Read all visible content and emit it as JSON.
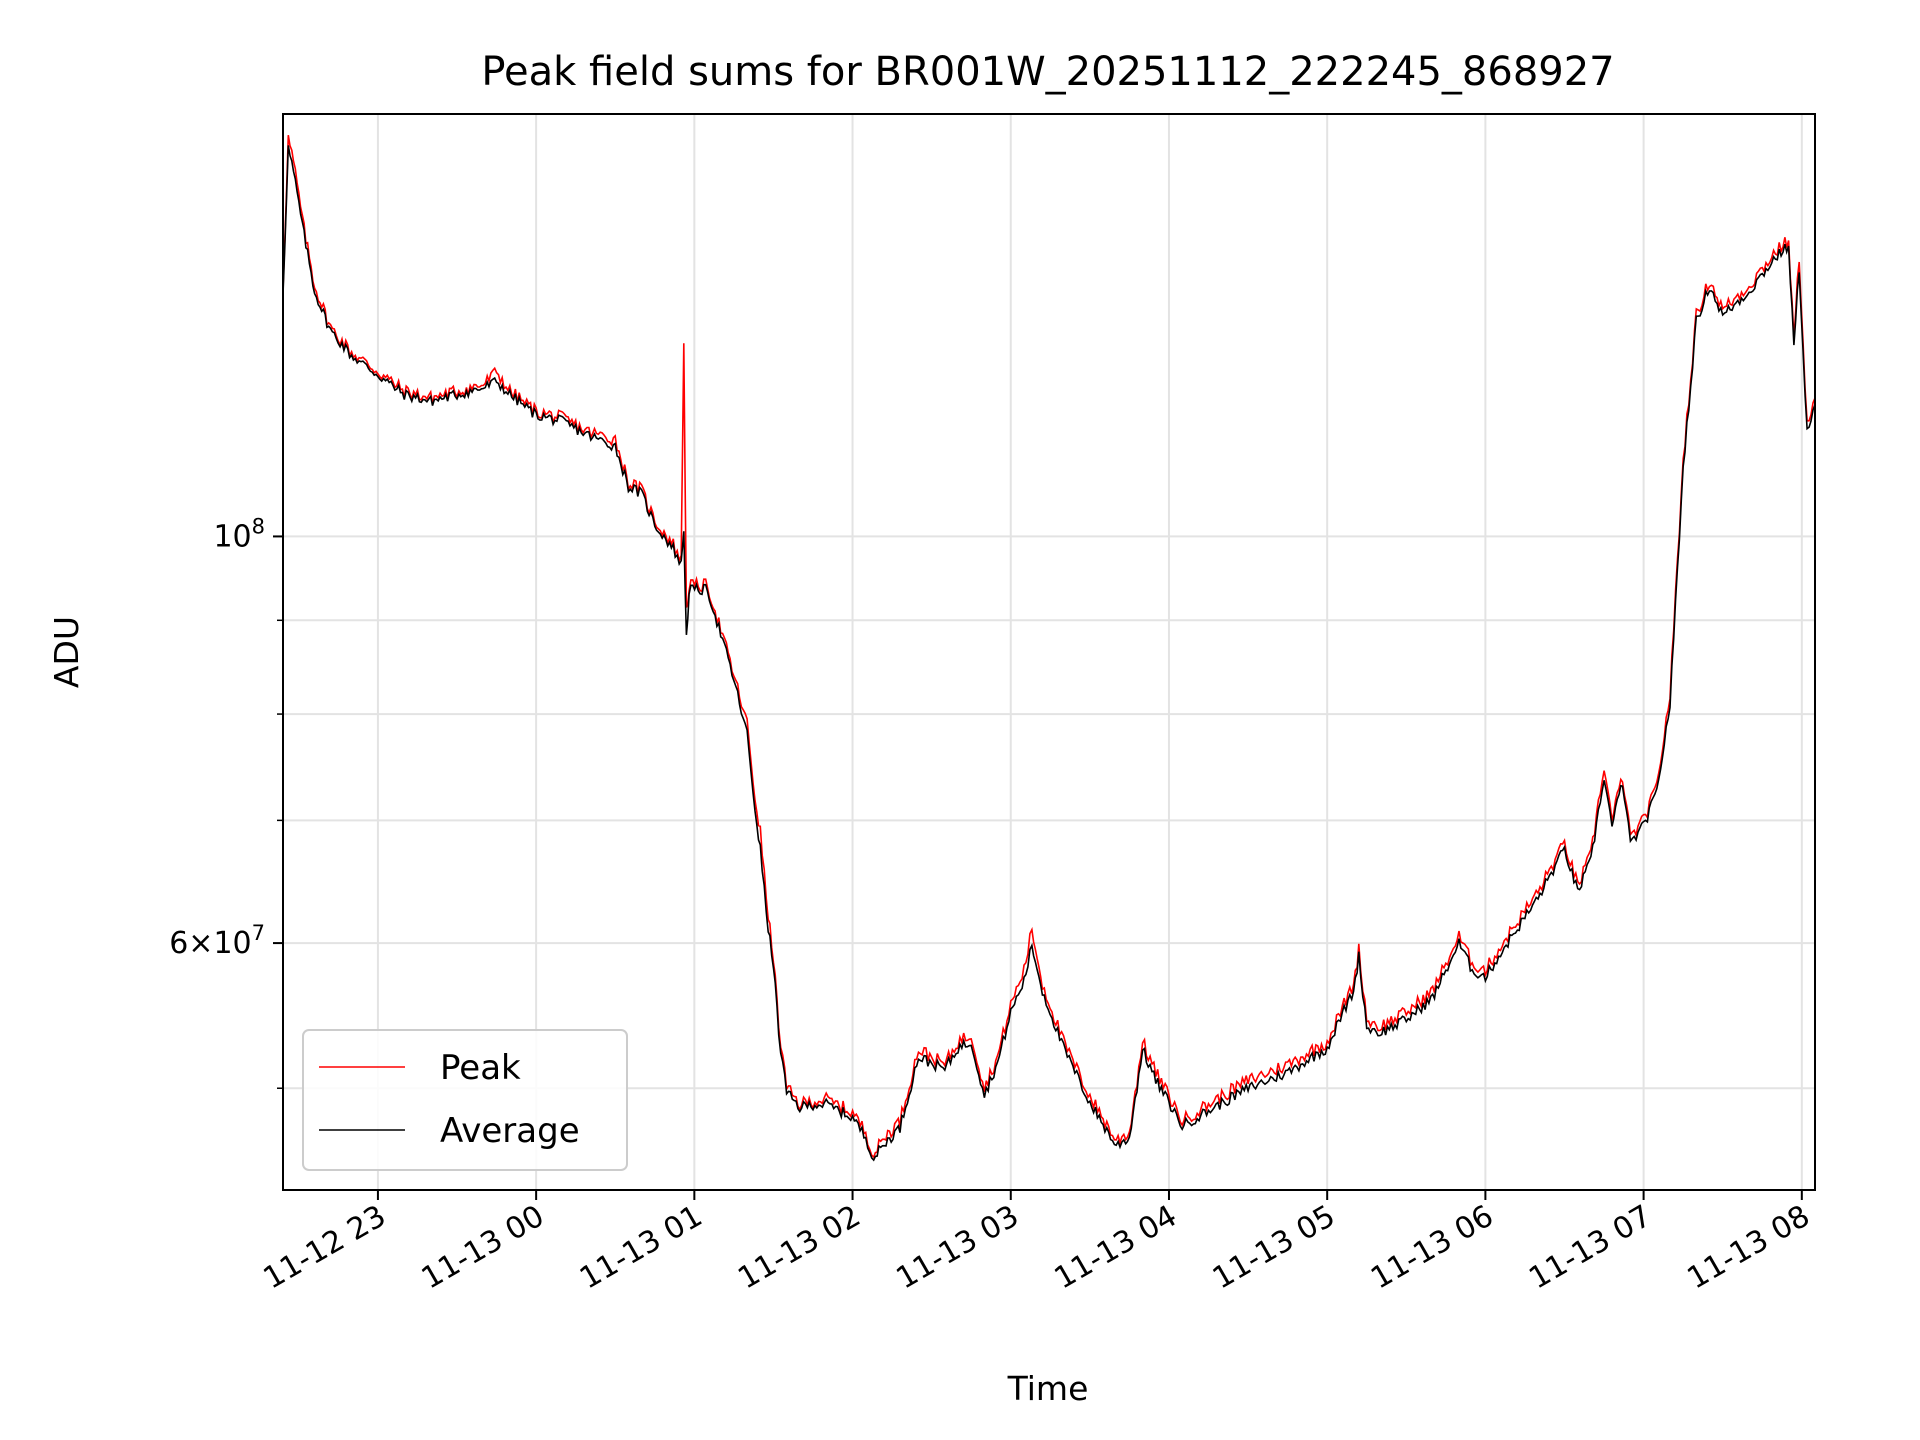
{
  "chart_data": {
    "type": "line",
    "title": "Peak field sums for BR001W_20251112_222245_868927",
    "xlabel": "Time",
    "ylabel": "ADU",
    "yscale": "log",
    "grid": true,
    "legend_position": "lower-left",
    "xlim": [
      "2025-11-12 22:24",
      "2025-11-13 08:05"
    ],
    "ylim": [
      44000000,
      170000000
    ],
    "x_ticks": [
      "11-12 23",
      "11-13 00",
      "11-13 01",
      "11-13 02",
      "11-13 03",
      "11-13 04",
      "11-13 05",
      "11-13 06",
      "11-13 07",
      "11-13 08"
    ],
    "y_major_tick_labels": [
      {
        "value": 100000000,
        "label": "10^8",
        "base": "10",
        "exponent": "8"
      },
      {
        "value": 60000000,
        "label": "6×10^7",
        "base": "6×10",
        "exponent": "7"
      }
    ],
    "y_minor_ticks": [
      50000000,
      70000000,
      80000000,
      90000000
    ],
    "series": [
      {
        "name": "Peak",
        "color": "#ff0000",
        "points": [
          [
            "2025-11-12 22:24",
            137000000
          ],
          [
            "2025-11-12 22:26",
            165000000
          ],
          [
            "2025-11-12 22:28",
            160000000
          ],
          [
            "2025-11-12 22:32",
            147000000
          ],
          [
            "2025-11-12 22:36",
            137000000
          ],
          [
            "2025-11-12 22:42",
            130000000
          ],
          [
            "2025-11-12 22:50",
            126000000
          ],
          [
            "2025-11-12 23:00",
            123000000
          ],
          [
            "2025-11-12 23:10",
            120000000
          ],
          [
            "2025-11-12 23:20",
            119000000
          ],
          [
            "2025-11-12 23:30",
            120000000
          ],
          [
            "2025-11-12 23:40",
            121000000
          ],
          [
            "2025-11-12 23:45",
            123000000
          ],
          [
            "2025-11-12 23:50",
            120000000
          ],
          [
            "2025-11-13 00:00",
            117000000
          ],
          [
            "2025-11-13 00:10",
            116000000
          ],
          [
            "2025-11-13 00:20",
            114000000
          ],
          [
            "2025-11-13 00:30",
            113000000
          ],
          [
            "2025-11-13 00:35",
            107000000
          ],
          [
            "2025-11-13 00:40",
            106000000
          ],
          [
            "2025-11-13 00:45",
            102000000
          ],
          [
            "2025-11-13 00:52",
            99000000
          ],
          [
            "2025-11-13 00:55",
            97000000
          ],
          [
            "2025-11-13 00:56",
            128000000
          ],
          [
            "2025-11-13 00:57",
            91000000
          ],
          [
            "2025-11-13 00:58",
            94000000
          ],
          [
            "2025-11-13 01:05",
            94000000
          ],
          [
            "2025-11-13 01:10",
            89000000
          ],
          [
            "2025-11-13 01:15",
            84000000
          ],
          [
            "2025-11-13 01:20",
            79000000
          ],
          [
            "2025-11-13 01:23",
            72000000
          ],
          [
            "2025-11-13 01:25",
            69000000
          ],
          [
            "2025-11-13 01:28",
            62000000
          ],
          [
            "2025-11-13 01:30",
            59000000
          ],
          [
            "2025-11-13 01:32",
            54000000
          ],
          [
            "2025-11-13 01:35",
            50000000
          ],
          [
            "2025-11-13 01:40",
            49000000
          ],
          [
            "2025-11-13 01:45",
            49200000
          ],
          [
            "2025-11-13 01:50",
            49300000
          ],
          [
            "2025-11-13 02:00",
            48500000
          ],
          [
            "2025-11-13 02:05",
            47300000
          ],
          [
            "2025-11-13 02:08",
            46000000
          ],
          [
            "2025-11-13 02:12",
            47000000
          ],
          [
            "2025-11-13 02:18",
            48000000
          ],
          [
            "2025-11-13 02:25",
            52500000
          ],
          [
            "2025-11-13 02:30",
            52000000
          ],
          [
            "2025-11-13 02:35",
            51500000
          ],
          [
            "2025-11-13 02:40",
            53000000
          ],
          [
            "2025-11-13 02:45",
            53500000
          ],
          [
            "2025-11-13 02:50",
            50000000
          ],
          [
            "2025-11-13 02:55",
            52000000
          ],
          [
            "2025-11-13 03:00",
            55500000
          ],
          [
            "2025-11-13 03:05",
            58000000
          ],
          [
            "2025-11-13 03:08",
            61000000
          ],
          [
            "2025-11-13 03:12",
            57000000
          ],
          [
            "2025-11-13 03:20",
            53000000
          ],
          [
            "2025-11-13 03:30",
            49500000
          ],
          [
            "2025-11-13 03:40",
            46800000
          ],
          [
            "2025-11-13 03:45",
            47300000
          ],
          [
            "2025-11-13 03:50",
            53000000
          ],
          [
            "2025-11-13 03:55",
            51000000
          ],
          [
            "2025-11-13 04:00",
            49500000
          ],
          [
            "2025-11-13 04:05",
            48000000
          ],
          [
            "2025-11-13 04:15",
            49000000
          ],
          [
            "2025-11-13 04:30",
            50500000
          ],
          [
            "2025-11-13 04:45",
            51500000
          ],
          [
            "2025-11-13 05:00",
            53000000
          ],
          [
            "2025-11-13 05:05",
            55000000
          ],
          [
            "2025-11-13 05:10",
            57000000
          ],
          [
            "2025-11-13 05:12",
            59500000
          ],
          [
            "2025-11-13 05:15",
            54500000
          ],
          [
            "2025-11-13 05:20",
            54000000
          ],
          [
            "2025-11-13 05:30",
            55000000
          ],
          [
            "2025-11-13 05:40",
            56500000
          ],
          [
            "2025-11-13 05:50",
            60500000
          ],
          [
            "2025-11-13 05:55",
            58500000
          ],
          [
            "2025-11-13 06:00",
            58000000
          ],
          [
            "2025-11-13 06:10",
            61000000
          ],
          [
            "2025-11-13 06:20",
            64000000
          ],
          [
            "2025-11-13 06:25",
            66000000
          ],
          [
            "2025-11-13 06:30",
            68000000
          ],
          [
            "2025-11-13 06:35",
            64500000
          ],
          [
            "2025-11-13 06:40",
            67000000
          ],
          [
            "2025-11-13 06:45",
            75000000
          ],
          [
            "2025-11-13 06:48",
            70000000
          ],
          [
            "2025-11-13 06:52",
            74000000
          ],
          [
            "2025-11-13 06:55",
            68500000
          ],
          [
            "2025-11-13 07:00",
            70000000
          ],
          [
            "2025-11-13 07:05",
            73000000
          ],
          [
            "2025-11-13 07:10",
            82000000
          ],
          [
            "2025-11-13 07:15",
            110000000
          ],
          [
            "2025-11-13 07:20",
            132000000
          ],
          [
            "2025-11-13 07:25",
            138000000
          ],
          [
            "2025-11-13 07:30",
            133000000
          ],
          [
            "2025-11-13 07:40",
            137000000
          ],
          [
            "2025-11-13 07:50",
            143000000
          ],
          [
            "2025-11-13 07:55",
            145000000
          ],
          [
            "2025-11-13 07:57",
            128000000
          ],
          [
            "2025-11-13 07:59",
            142000000
          ],
          [
            "2025-11-13 08:02",
            115000000
          ],
          [
            "2025-11-13 08:05",
            119000000
          ]
        ]
      },
      {
        "name": "Average",
        "color": "#000000",
        "points": [
          [
            "2025-11-12 22:24",
            136000000
          ],
          [
            "2025-11-12 22:26",
            163000000
          ],
          [
            "2025-11-12 22:28",
            158000000
          ],
          [
            "2025-11-12 22:32",
            146000000
          ],
          [
            "2025-11-12 22:36",
            136000000
          ],
          [
            "2025-11-12 22:42",
            129500000
          ],
          [
            "2025-11-12 22:50",
            125500000
          ],
          [
            "2025-11-12 23:00",
            122500000
          ],
          [
            "2025-11-12 23:10",
            119500000
          ],
          [
            "2025-11-12 23:20",
            118500000
          ],
          [
            "2025-11-12 23:30",
            119500000
          ],
          [
            "2025-11-12 23:40",
            120500000
          ],
          [
            "2025-11-12 23:45",
            121500000
          ],
          [
            "2025-11-12 23:50",
            119500000
          ],
          [
            "2025-11-13 00:00",
            116500000
          ],
          [
            "2025-11-13 00:10",
            115500000
          ],
          [
            "2025-11-13 00:20",
            113500000
          ],
          [
            "2025-11-13 00:30",
            112000000
          ],
          [
            "2025-11-13 00:35",
            106500000
          ],
          [
            "2025-11-13 00:40",
            105500000
          ],
          [
            "2025-11-13 00:45",
            101500000
          ],
          [
            "2025-11-13 00:52",
            98500000
          ],
          [
            "2025-11-13 00:55",
            96500000
          ],
          [
            "2025-11-13 00:56",
            101000000
          ],
          [
            "2025-11-13 00:57",
            88000000
          ],
          [
            "2025-11-13 00:58",
            93500000
          ],
          [
            "2025-11-13 01:05",
            93500000
          ],
          [
            "2025-11-13 01:10",
            88500000
          ],
          [
            "2025-11-13 01:15",
            83500000
          ],
          [
            "2025-11-13 01:20",
            78000000
          ],
          [
            "2025-11-13 01:23",
            71000000
          ],
          [
            "2025-11-13 01:25",
            67500000
          ],
          [
            "2025-11-13 01:28",
            61000000
          ],
          [
            "2025-11-13 01:30",
            58500000
          ],
          [
            "2025-11-13 01:32",
            53500000
          ],
          [
            "2025-11-13 01:35",
            49700000
          ],
          [
            "2025-11-13 01:40",
            48800000
          ],
          [
            "2025-11-13 01:45",
            49000000
          ],
          [
            "2025-11-13 01:50",
            49000000
          ],
          [
            "2025-11-13 02:00",
            48200000
          ],
          [
            "2025-11-13 02:05",
            47000000
          ],
          [
            "2025-11-13 02:08",
            45800000
          ],
          [
            "2025-11-13 02:12",
            46600000
          ],
          [
            "2025-11-13 02:18",
            47600000
          ],
          [
            "2025-11-13 02:25",
            52000000
          ],
          [
            "2025-11-13 02:30",
            51600000
          ],
          [
            "2025-11-13 02:35",
            51200000
          ],
          [
            "2025-11-13 02:40",
            52600000
          ],
          [
            "2025-11-13 02:45",
            53000000
          ],
          [
            "2025-11-13 02:50",
            49600000
          ],
          [
            "2025-11-13 02:55",
            51600000
          ],
          [
            "2025-11-13 03:00",
            55000000
          ],
          [
            "2025-11-13 03:05",
            57200000
          ],
          [
            "2025-11-13 03:08",
            59800000
          ],
          [
            "2025-11-13 03:12",
            56500000
          ],
          [
            "2025-11-13 03:20",
            52600000
          ],
          [
            "2025-11-13 03:30",
            49100000
          ],
          [
            "2025-11-13 03:40",
            46500000
          ],
          [
            "2025-11-13 03:45",
            47000000
          ],
          [
            "2025-11-13 03:50",
            52500000
          ],
          [
            "2025-11-13 03:55",
            50500000
          ],
          [
            "2025-11-13 04:00",
            49100000
          ],
          [
            "2025-11-13 04:05",
            47700000
          ],
          [
            "2025-11-13 04:15",
            48600000
          ],
          [
            "2025-11-13 04:30",
            50000000
          ],
          [
            "2025-11-13 04:45",
            51000000
          ],
          [
            "2025-11-13 05:00",
            52600000
          ],
          [
            "2025-11-13 05:05",
            54600000
          ],
          [
            "2025-11-13 05:10",
            56500000
          ],
          [
            "2025-11-13 05:12",
            59000000
          ],
          [
            "2025-11-13 05:15",
            54000000
          ],
          [
            "2025-11-13 05:20",
            53600000
          ],
          [
            "2025-11-13 05:30",
            54500000
          ],
          [
            "2025-11-13 05:40",
            56000000
          ],
          [
            "2025-11-13 05:50",
            60000000
          ],
          [
            "2025-11-13 05:55",
            58000000
          ],
          [
            "2025-11-13 06:00",
            57500000
          ],
          [
            "2025-11-13 06:10",
            60500000
          ],
          [
            "2025-11-13 06:20",
            63500000
          ],
          [
            "2025-11-13 06:25",
            65500000
          ],
          [
            "2025-11-13 06:30",
            67500000
          ],
          [
            "2025-11-13 06:35",
            64000000
          ],
          [
            "2025-11-13 06:40",
            66500000
          ],
          [
            "2025-11-13 06:45",
            74000000
          ],
          [
            "2025-11-13 06:48",
            69500000
          ],
          [
            "2025-11-13 06:52",
            73500000
          ],
          [
            "2025-11-13 06:55",
            68000000
          ],
          [
            "2025-11-13 07:00",
            69500000
          ],
          [
            "2025-11-13 07:05",
            72500000
          ],
          [
            "2025-11-13 07:10",
            81000000
          ],
          [
            "2025-11-13 07:15",
            109000000
          ],
          [
            "2025-11-13 07:20",
            131000000
          ],
          [
            "2025-11-13 07:25",
            137000000
          ],
          [
            "2025-11-13 07:30",
            132000000
          ],
          [
            "2025-11-13 07:40",
            136000000
          ],
          [
            "2025-11-13 07:50",
            142000000
          ],
          [
            "2025-11-13 07:55",
            144000000
          ],
          [
            "2025-11-13 07:57",
            127000000
          ],
          [
            "2025-11-13 07:59",
            140000000
          ],
          [
            "2025-11-13 08:02",
            114000000
          ],
          [
            "2025-11-13 08:05",
            118000000
          ]
        ]
      }
    ]
  }
}
